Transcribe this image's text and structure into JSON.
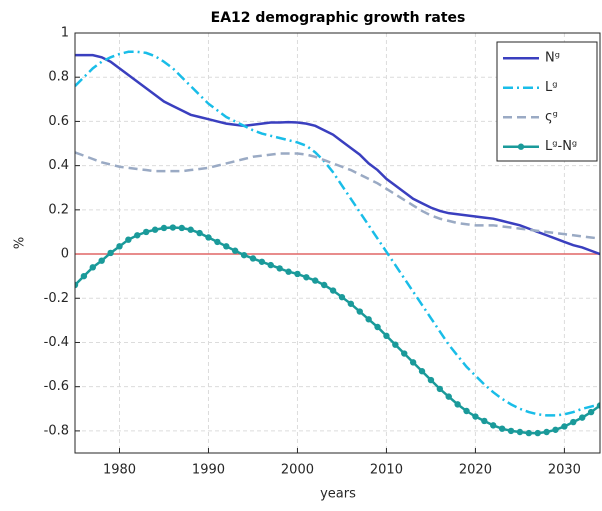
{
  "chart_data": {
    "type": "line",
    "title": "EA12 demographic growth rates",
    "xlabel": "years",
    "ylabel": "%",
    "x": [
      1975,
      1976,
      1977,
      1978,
      1979,
      1980,
      1981,
      1982,
      1983,
      1984,
      1985,
      1986,
      1987,
      1988,
      1989,
      1990,
      1991,
      1992,
      1993,
      1994,
      1995,
      1996,
      1997,
      1998,
      1999,
      2000,
      2001,
      2002,
      2003,
      2004,
      2005,
      2006,
      2007,
      2008,
      2009,
      2010,
      2011,
      2012,
      2013,
      2014,
      2015,
      2016,
      2017,
      2018,
      2019,
      2020,
      2021,
      2022,
      2023,
      2024,
      2025,
      2026,
      2027,
      2028,
      2029,
      2030,
      2031,
      2032,
      2033,
      2034
    ],
    "series": [
      {
        "name": "Nᵍ",
        "color": "#3a3fbf",
        "dash": "solid",
        "values": [
          0.9,
          0.9,
          0.9,
          0.89,
          0.87,
          0.84,
          0.81,
          0.78,
          0.75,
          0.72,
          0.69,
          0.67,
          0.65,
          0.63,
          0.62,
          0.61,
          0.6,
          0.59,
          0.585,
          0.58,
          0.585,
          0.59,
          0.595,
          0.595,
          0.597,
          0.595,
          0.59,
          0.58,
          0.56,
          0.54,
          0.51,
          0.48,
          0.45,
          0.41,
          0.38,
          0.34,
          0.31,
          0.28,
          0.25,
          0.23,
          0.21,
          0.195,
          0.185,
          0.18,
          0.175,
          0.17,
          0.165,
          0.16,
          0.15,
          0.14,
          0.13,
          0.115,
          0.1,
          0.085,
          0.07,
          0.055,
          0.04,
          0.03,
          0.015,
          0.0
        ]
      },
      {
        "name": "Lᵍ",
        "color": "#19bde8",
        "dash": "dashdot",
        "values": [
          0.76,
          0.8,
          0.84,
          0.87,
          0.89,
          0.905,
          0.915,
          0.915,
          0.91,
          0.895,
          0.87,
          0.84,
          0.8,
          0.76,
          0.72,
          0.68,
          0.65,
          0.62,
          0.6,
          0.58,
          0.56,
          0.545,
          0.535,
          0.525,
          0.515,
          0.505,
          0.49,
          0.46,
          0.42,
          0.37,
          0.31,
          0.25,
          0.19,
          0.13,
          0.07,
          0.01,
          -0.05,
          -0.11,
          -0.17,
          -0.23,
          -0.29,
          -0.35,
          -0.41,
          -0.46,
          -0.51,
          -0.55,
          -0.59,
          -0.625,
          -0.655,
          -0.68,
          -0.7,
          -0.715,
          -0.725,
          -0.73,
          -0.73,
          -0.725,
          -0.715,
          -0.7,
          -0.69,
          -0.68
        ]
      },
      {
        "name": "ςᵍ",
        "color": "#9aaac4",
        "dash": "dashed",
        "values": [
          0.46,
          0.445,
          0.43,
          0.415,
          0.405,
          0.395,
          0.39,
          0.385,
          0.38,
          0.375,
          0.375,
          0.375,
          0.375,
          0.38,
          0.385,
          0.39,
          0.4,
          0.41,
          0.42,
          0.43,
          0.44,
          0.445,
          0.45,
          0.455,
          0.455,
          0.455,
          0.45,
          0.44,
          0.425,
          0.41,
          0.395,
          0.38,
          0.36,
          0.34,
          0.32,
          0.295,
          0.27,
          0.245,
          0.22,
          0.195,
          0.175,
          0.16,
          0.15,
          0.14,
          0.135,
          0.13,
          0.13,
          0.13,
          0.125,
          0.12,
          0.115,
          0.11,
          0.105,
          0.1,
          0.095,
          0.09,
          0.085,
          0.08,
          0.075,
          0.07
        ]
      },
      {
        "name": "Lᵍ-Nᵍ",
        "color": "#1a9a9a",
        "dash": "solid",
        "markers": true,
        "values": [
          -0.14,
          -0.1,
          -0.06,
          -0.03,
          0.005,
          0.035,
          0.065,
          0.085,
          0.1,
          0.11,
          0.118,
          0.12,
          0.118,
          0.11,
          0.095,
          0.075,
          0.055,
          0.035,
          0.015,
          -0.005,
          -0.02,
          -0.035,
          -0.05,
          -0.065,
          -0.08,
          -0.09,
          -0.105,
          -0.12,
          -0.14,
          -0.165,
          -0.195,
          -0.225,
          -0.26,
          -0.295,
          -0.33,
          -0.37,
          -0.41,
          -0.45,
          -0.49,
          -0.53,
          -0.57,
          -0.61,
          -0.645,
          -0.68,
          -0.71,
          -0.735,
          -0.755,
          -0.775,
          -0.79,
          -0.8,
          -0.805,
          -0.81,
          -0.81,
          -0.805,
          -0.795,
          -0.78,
          -0.76,
          -0.74,
          -0.715,
          -0.685
        ]
      }
    ],
    "reference_line": {
      "value": 0,
      "color": "#e06666"
    },
    "xlim": [
      1975,
      2034
    ],
    "xticks": [
      1980,
      1990,
      2000,
      2010,
      2020,
      2030
    ],
    "ylim": [
      -0.9,
      1
    ],
    "yticks": [
      -0.8,
      -0.6,
      -0.4,
      -0.2,
      0,
      0.2,
      0.4,
      0.6,
      0.8,
      1
    ],
    "grid": true,
    "legend": "top-right"
  }
}
